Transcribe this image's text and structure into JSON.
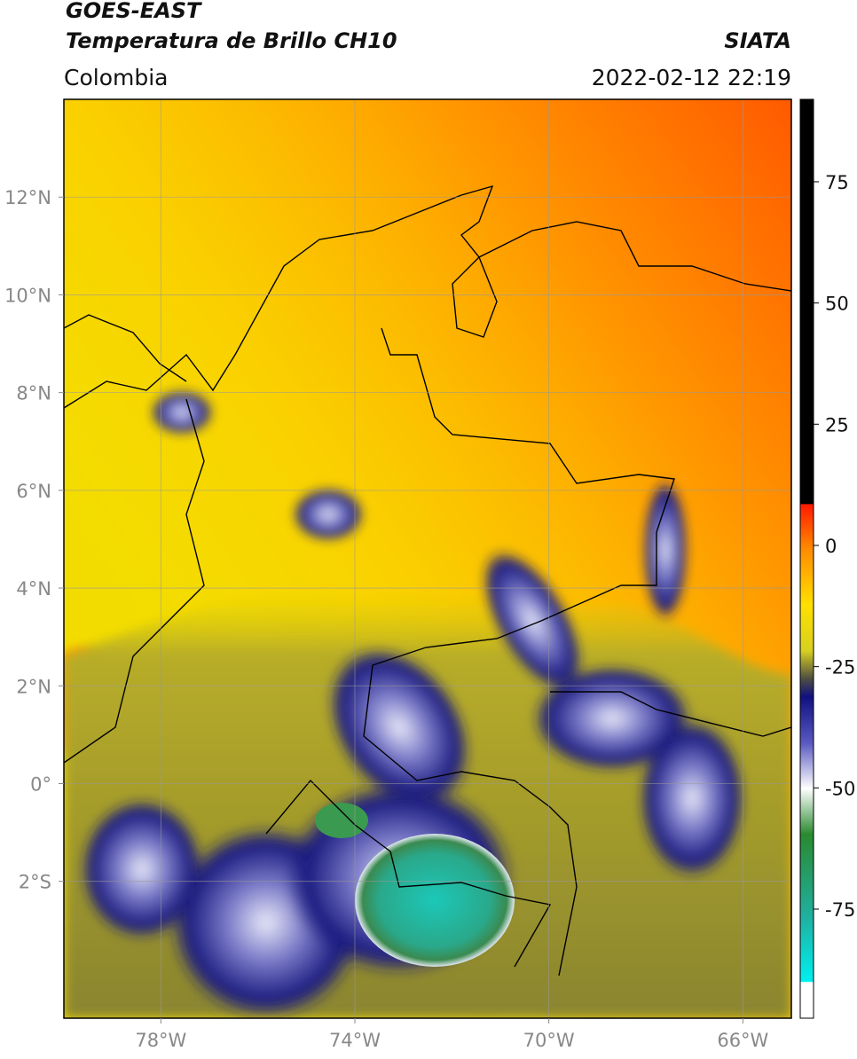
{
  "header": {
    "title": "GOES-EAST",
    "subtitle": "Temperatura de Brillo CH10",
    "source": "SIATA",
    "region": "Colombia",
    "timestamp": "2022-02-12 22:19"
  },
  "map": {
    "lonlim": [
      -80,
      -65
    ],
    "latlim": [
      -4.8,
      14
    ],
    "grid": true,
    "lonticks": [
      {
        "value": -78,
        "label": "78°W"
      },
      {
        "value": -74,
        "label": "74°W"
      },
      {
        "value": -70,
        "label": "70°W"
      },
      {
        "value": -66,
        "label": "66°W"
      }
    ],
    "latticks": [
      {
        "value": 12,
        "label": "12°N"
      },
      {
        "value": 10,
        "label": "10°N"
      },
      {
        "value": 8,
        "label": "8°N"
      },
      {
        "value": 6,
        "label": "6°N"
      },
      {
        "value": 4,
        "label": "4°N"
      },
      {
        "value": 2,
        "label": "2°N"
      },
      {
        "value": 0,
        "label": "0°"
      },
      {
        "value": -2,
        "label": "2°S"
      }
    ]
  },
  "colorbar": {
    "lim": [
      -97.5,
      92
    ],
    "ticks": [
      75,
      50,
      25,
      0,
      -25,
      -50,
      -75
    ]
  }
}
